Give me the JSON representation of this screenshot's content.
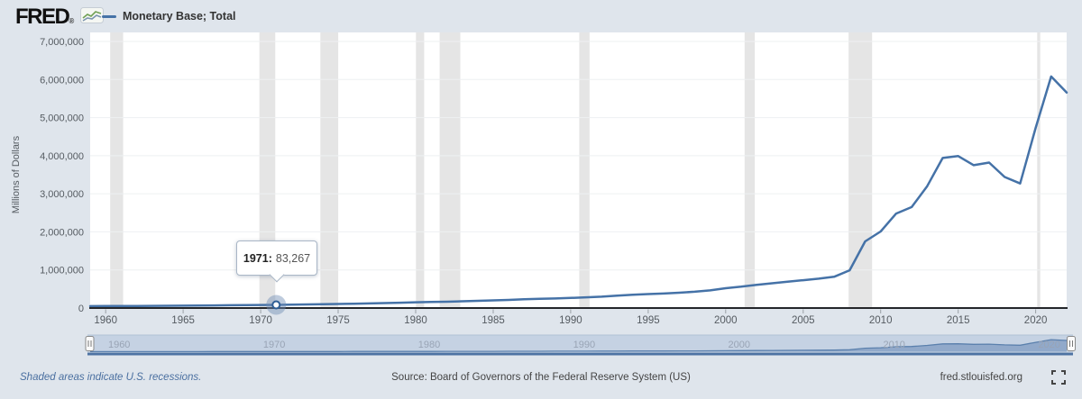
{
  "header": {
    "logo_text": "FRED",
    "registered_mark": "®",
    "legend_label": "Monetary Base; Total"
  },
  "chart_data": {
    "type": "line",
    "title": "Monetary Base; Total",
    "ylabel": "Millions of Dollars",
    "xlabel": "",
    "ylim": [
      0,
      7000000
    ],
    "x_range": [
      1959,
      2022
    ],
    "grid": "horizontal",
    "legend_position": "top-left",
    "y_tick_labels": [
      "0",
      "1,000,000",
      "2,000,000",
      "3,000,000",
      "4,000,000",
      "5,000,000",
      "6,000,000",
      "7,000,000"
    ],
    "y_tick_values": [
      0,
      1000000,
      2000000,
      3000000,
      4000000,
      5000000,
      6000000,
      7000000
    ],
    "x_ticks": [
      1960,
      1965,
      1970,
      1975,
      1980,
      1985,
      1990,
      1995,
      2000,
      2005,
      2010,
      2015,
      2020
    ],
    "x_tick_labels": [
      "1960",
      "1965",
      "1970",
      "1975",
      "1980",
      "1985",
      "1990",
      "1995",
      "2000",
      "2005",
      "2010",
      "2015",
      "2020"
    ],
    "series": [
      {
        "name": "Monetary Base; Total",
        "color": "#4572a7",
        "years": [
          1959,
          1960,
          1961,
          1962,
          1963,
          1964,
          1965,
          1966,
          1967,
          1968,
          1969,
          1970,
          1971,
          1972,
          1973,
          1974,
          1975,
          1976,
          1977,
          1978,
          1979,
          1980,
          1981,
          1982,
          1983,
          1984,
          1985,
          1986,
          1987,
          1988,
          1989,
          1990,
          1991,
          1992,
          1993,
          1994,
          1995,
          1996,
          1997,
          1998,
          1999,
          2000,
          2001,
          2002,
          2003,
          2004,
          2005,
          2006,
          2007,
          2008,
          2009,
          2010,
          2011,
          2012,
          2013,
          2014,
          2015,
          2016,
          2017,
          2018,
          2019,
          2020,
          2021,
          2022
        ],
        "values": [
          50500,
          50900,
          52100,
          53700,
          56000,
          58900,
          61800,
          64800,
          68300,
          72900,
          76600,
          80000,
          83267,
          89000,
          95000,
          101500,
          107000,
          113700,
          121500,
          131000,
          140600,
          150800,
          158300,
          166500,
          178300,
          188300,
          200500,
          214000,
          228500,
          241000,
          251000,
          265500,
          280500,
          299000,
          324000,
          348000,
          366500,
          381000,
          402500,
          429000,
          464000,
          520000,
          560000,
          610000,
          650000,
          690000,
          730000,
          770000,
          820000,
          990000,
          1750000,
          2010000,
          2480000,
          2650000,
          3200000,
          3940000,
          3990000,
          3750000,
          3820000,
          3440000,
          3270000,
          4730000,
          6080000,
          5660000
        ]
      }
    ],
    "recessions": [
      [
        1960.29,
        1961.13
      ],
      [
        1969.92,
        1971.03
      ],
      [
        1973.85,
        1975.0
      ],
      [
        1980.02,
        1980.55
      ],
      [
        1981.55,
        1982.88
      ],
      [
        1990.55,
        1991.22
      ],
      [
        2001.22,
        2001.88
      ],
      [
        2007.93,
        2009.45
      ],
      [
        2020.1,
        2020.3
      ]
    ],
    "tooltip": {
      "year_label": "1971:",
      "value_text": "83,267",
      "x_year": 1971,
      "y_value": 83267
    },
    "slider": {
      "labels": [
        "1960",
        "1970",
        "1980",
        "1990",
        "2000",
        "2010",
        "2020"
      ]
    }
  },
  "footer": {
    "recession_note": "Shaded areas indicate U.S. recessions.",
    "source": "Source: Board of Governors of the Federal Reserve System (US)",
    "site": "fred.stlouisfed.org"
  },
  "colors": {
    "background": "#dfe5ec",
    "plot_bg": "#ffffff",
    "line": "#4572a7",
    "recession": "#e5e5e5",
    "grid": "#eef0f2",
    "axis": "#24262a",
    "tick": "#9aa0a6",
    "tick_text": "#555b61",
    "slider_track": "#c5d2e3",
    "slider_track_edge": "#b0c1d6",
    "slider_fill": "#8ba4c6",
    "slider_stroke": "#5b80ad",
    "slider_label": "#99a4b5",
    "selection_bar": "#4d73a3",
    "marker_halo": "rgba(110,140,180,0.45)",
    "marker_ring": "#2f5f96",
    "crosshair": "#ffffff"
  }
}
